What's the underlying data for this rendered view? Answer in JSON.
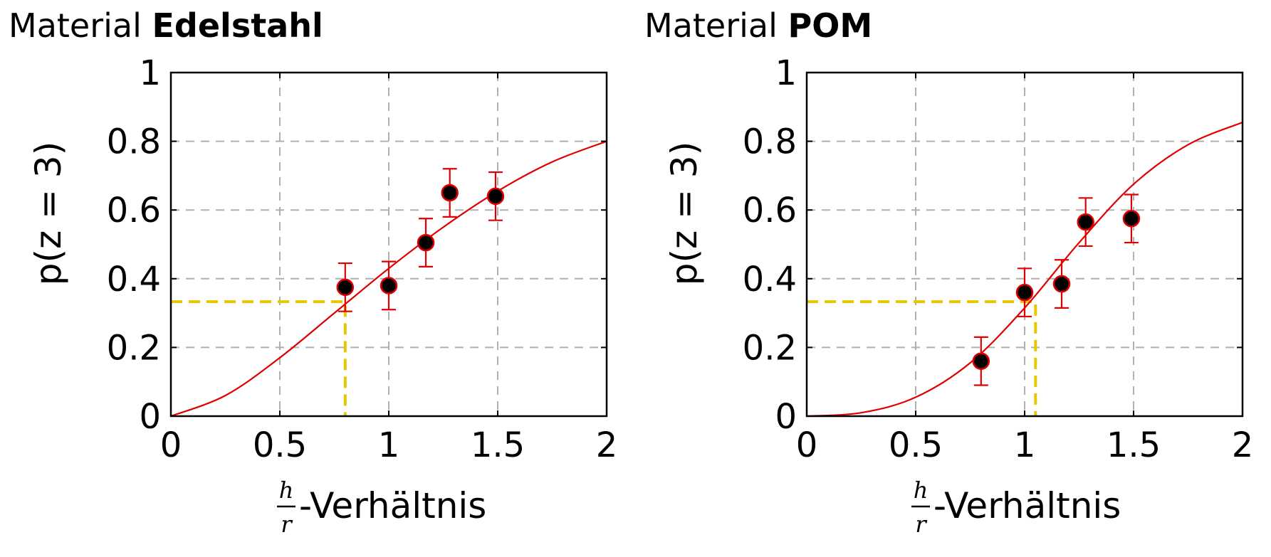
{
  "chart_data": [
    {
      "type": "scatter",
      "title_prefix": "Material",
      "title_material": "Edelstahl",
      "xlabel_frac_num": "h",
      "xlabel_frac_den": "r",
      "xlabel_text": "-Verhältnis",
      "ylabel": "p(z = 3)",
      "xlim": [
        0,
        2
      ],
      "ylim": [
        0,
        1
      ],
      "x_ticks": [
        0,
        0.5,
        1,
        1.5,
        2
      ],
      "x_tick_labels": [
        "0",
        "0.5",
        "1",
        "1.5",
        "2"
      ],
      "y_ticks": [
        0,
        0.2,
        0.4,
        0.6,
        0.8,
        1
      ],
      "y_tick_labels": [
        "0",
        "0.2",
        "0.4",
        "0.6",
        "0.8",
        "1"
      ],
      "grid": true,
      "points": [
        {
          "x": 0.8,
          "y": 0.375,
          "err_low": 0.305,
          "err_high": 0.445
        },
        {
          "x": 1.0,
          "y": 0.38,
          "err_low": 0.31,
          "err_high": 0.45
        },
        {
          "x": 1.17,
          "y": 0.505,
          "err_low": 0.435,
          "err_high": 0.575
        },
        {
          "x": 1.28,
          "y": 0.65,
          "err_low": 0.58,
          "err_high": 0.72
        },
        {
          "x": 1.49,
          "y": 0.64,
          "err_low": 0.57,
          "err_high": 0.71
        }
      ],
      "fit_curve": {
        "x": [
          0,
          0.25,
          0.5,
          0.75,
          1.0,
          1.25,
          1.5,
          1.75,
          2.0
        ],
        "y": [
          0,
          0.06,
          0.17,
          0.3,
          0.43,
          0.55,
          0.655,
          0.74,
          0.8
        ]
      },
      "threshold": {
        "x": 0.8,
        "y": 0.333
      }
    },
    {
      "type": "scatter",
      "title_prefix": "Material",
      "title_material": "POM",
      "xlabel_frac_num": "h",
      "xlabel_frac_den": "r",
      "xlabel_text": "-Verhältnis",
      "ylabel": "p(z = 3)",
      "xlim": [
        0,
        2
      ],
      "ylim": [
        0,
        1
      ],
      "x_ticks": [
        0,
        0.5,
        1,
        1.5,
        2
      ],
      "x_tick_labels": [
        "0",
        "0.5",
        "1",
        "1.5",
        "2"
      ],
      "y_ticks": [
        0,
        0.2,
        0.4,
        0.6,
        0.8,
        1
      ],
      "y_tick_labels": [
        "0",
        "0.2",
        "0.4",
        "0.6",
        "0.8",
        "1"
      ],
      "grid": true,
      "points": [
        {
          "x": 0.8,
          "y": 0.16,
          "err_low": 0.09,
          "err_high": 0.23
        },
        {
          "x": 1.0,
          "y": 0.36,
          "err_low": 0.29,
          "err_high": 0.43
        },
        {
          "x": 1.17,
          "y": 0.385,
          "err_low": 0.315,
          "err_high": 0.455
        },
        {
          "x": 1.28,
          "y": 0.565,
          "err_low": 0.495,
          "err_high": 0.635
        },
        {
          "x": 1.49,
          "y": 0.575,
          "err_low": 0.505,
          "err_high": 0.645
        }
      ],
      "fit_curve": {
        "x": [
          0,
          0.25,
          0.5,
          0.75,
          1.0,
          1.25,
          1.5,
          1.75,
          2.0
        ],
        "y": [
          0,
          0.01,
          0.055,
          0.155,
          0.315,
          0.505,
          0.675,
          0.79,
          0.855
        ]
      },
      "threshold": {
        "x": 1.05,
        "y": 0.333
      }
    }
  ],
  "colors": {
    "fit": "#e00000",
    "marker_fill": "#000000",
    "marker_edge": "#e00000",
    "error_bar": "#e00000",
    "threshold": "#e6c800",
    "grid": "#b0b0b0",
    "axis": "#000000"
  }
}
